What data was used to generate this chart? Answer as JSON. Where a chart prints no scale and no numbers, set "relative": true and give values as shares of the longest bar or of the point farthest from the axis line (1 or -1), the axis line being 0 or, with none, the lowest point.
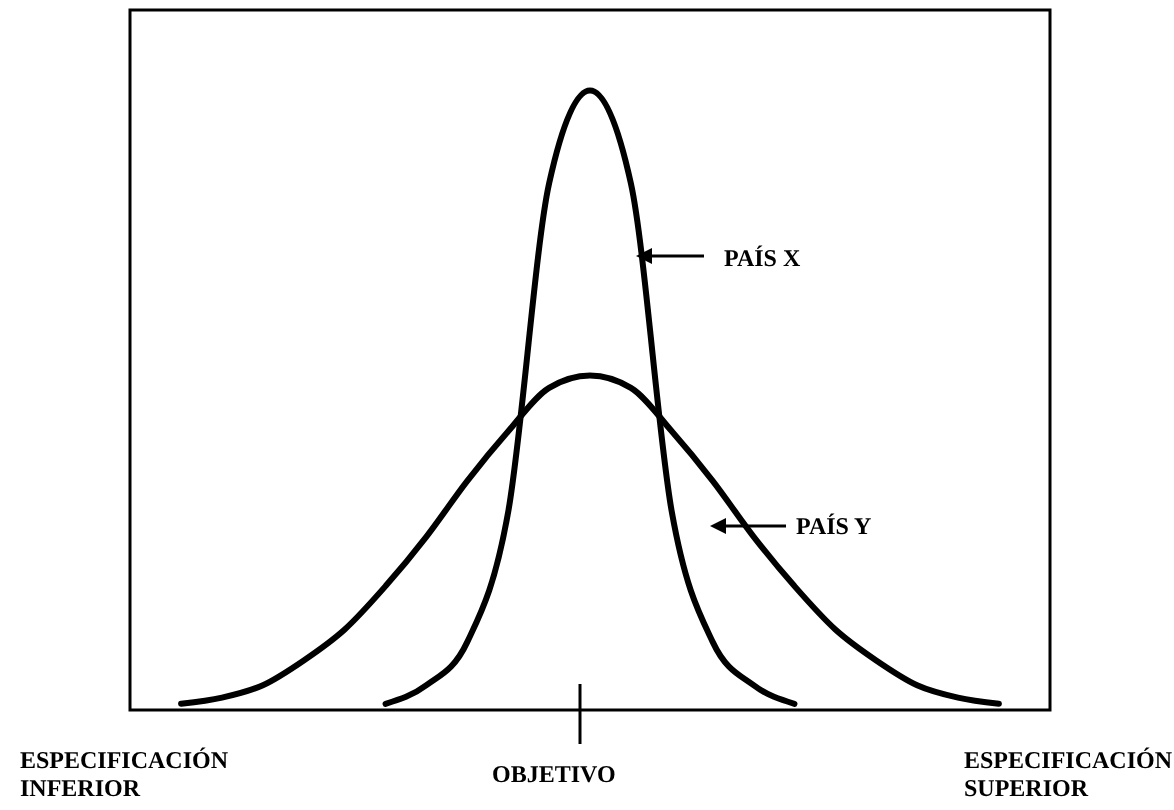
{
  "chart_data": {
    "type": "line",
    "relative": true,
    "legend": "right",
    "categories": [
      null,
      null,
      null,
      null,
      null,
      null,
      null,
      null,
      null,
      null,
      null,
      null,
      null,
      null,
      null,
      null,
      null,
      null,
      null,
      null,
      null
    ],
    "series": [
      {
        "name": "PAÍS X",
        "color": "#000000",
        "values": [
          null,
          null,
          null,
          null,
          null,
          0.01,
          0.04,
          0.11,
          0.32,
          0.85,
          1,
          0.85,
          0.32,
          0.11,
          0.04,
          0.01,
          null,
          null,
          null,
          null,
          null
        ]
      },
      {
        "name": "PAÍS Y",
        "color": "#000000",
        "values": [
          0.01,
          0.02,
          0.04,
          0.08,
          0.13,
          0.2,
          0.28,
          0.37,
          0.45,
          0.52,
          0.54,
          0.52,
          0.45,
          0.37,
          0.28,
          0.2,
          0.13,
          0.08,
          0.04,
          0.02,
          0.01
        ]
      }
    ],
    "annotations": [
      "ESPECIFICACIÓN INFERIOR",
      "OBJETIVO",
      "ESPECIFICACIÓN SUPERIOR"
    ]
  }
}
